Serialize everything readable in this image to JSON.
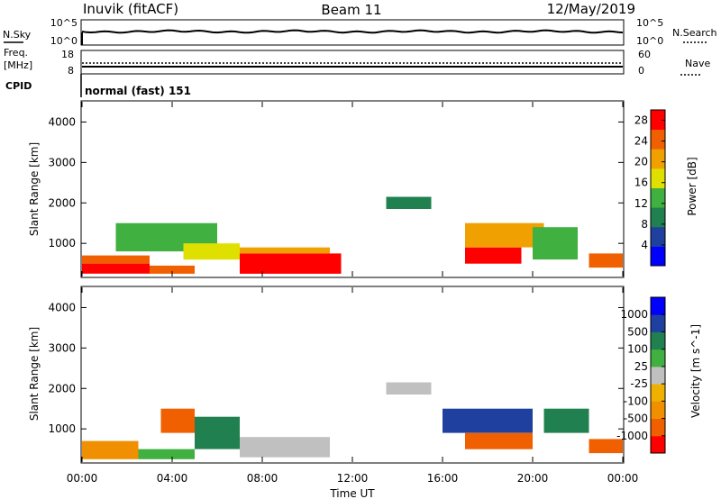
{
  "header": {
    "station": "Inuvik (fitACF)",
    "beam": "Beam 11",
    "date": "12/May/2019"
  },
  "sky_panel": {
    "left_label": "N.Sky",
    "left_ticks": [
      "10^5",
      "10^0"
    ],
    "right_label": "N.Search",
    "right_ticks": [
      "10^5",
      "10^0"
    ]
  },
  "freq_panel": {
    "left_label_1": "Freq.",
    "left_label_2": "[MHz]",
    "left_ticks": [
      "18",
      "8"
    ],
    "right_label": "Nave",
    "right_ticks": [
      "60",
      "0"
    ]
  },
  "cpid": {
    "label": "CPID",
    "value": "normal (fast) 151"
  },
  "colors": {
    "power_scale": [
      "#0000ff",
      "#2040a0",
      "#208050",
      "#40b040",
      "#e0e000",
      "#f0a000",
      "#f06000",
      "#ff0000"
    ],
    "velocity_scale": [
      "#ff0000",
      "#f06000",
      "#f09000",
      "#f0b000",
      "#c0c0c0",
      "#40b040",
      "#208050",
      "#2040a0",
      "#0000ff"
    ],
    "ground_scatter": "#c0c0c0"
  },
  "chart_data": [
    {
      "type": "heatmap",
      "panel": "power",
      "ylabel": "Slant Range [km]",
      "yticks": [
        "1000",
        "2000",
        "3000",
        "4000"
      ],
      "ylim": [
        180,
        4500
      ],
      "xticks": [
        "00:00",
        "04:00",
        "08:00",
        "12:00",
        "16:00",
        "20:00",
        "00:00"
      ],
      "colorbar_label": "Power [dB]",
      "colorbar_ticks": [
        "4",
        "8",
        "12",
        "16",
        "20",
        "24",
        "28"
      ],
      "colorbar_range": [
        0,
        30
      ],
      "regions": [
        {
          "t0": 0.0,
          "t1": 3.0,
          "r0": 250,
          "r1": 500,
          "value": 29
        },
        {
          "t0": 0.0,
          "t1": 3.0,
          "r0": 500,
          "r1": 700,
          "value": 23
        },
        {
          "t0": 3.0,
          "t1": 5.0,
          "r0": 250,
          "r1": 450,
          "value": 26
        },
        {
          "t0": 1.5,
          "t1": 6.0,
          "r0": 800,
          "r1": 1500,
          "value": 12
        },
        {
          "t0": 4.5,
          "t1": 7.0,
          "r0": 600,
          "r1": 1000,
          "value": 16
        },
        {
          "t0": 7.0,
          "t1": 11.5,
          "r0": 250,
          "r1": 750,
          "value": 28
        },
        {
          "t0": 7.0,
          "t1": 11.0,
          "r0": 750,
          "r1": 900,
          "value": 22
        },
        {
          "t0": 13.5,
          "t1": 15.5,
          "r0": 1850,
          "r1": 2150,
          "value": 8
        },
        {
          "t0": 17.0,
          "t1": 19.5,
          "r0": 500,
          "r1": 900,
          "value": 27
        },
        {
          "t0": 17.0,
          "t1": 20.5,
          "r0": 900,
          "r1": 1500,
          "value": 19
        },
        {
          "t0": 20.0,
          "t1": 22.0,
          "r0": 600,
          "r1": 1400,
          "value": 14
        },
        {
          "t0": 22.5,
          "t1": 24.0,
          "r0": 400,
          "r1": 750,
          "value": 24
        }
      ]
    },
    {
      "type": "heatmap",
      "panel": "velocity",
      "ylabel": "Slant Range [km]",
      "yticks": [
        "1000",
        "2000",
        "3000",
        "4000"
      ],
      "ylim": [
        180,
        4500
      ],
      "xticks": [
        "00:00",
        "04:00",
        "08:00",
        "12:00",
        "16:00",
        "20:00",
        "00:00"
      ],
      "xlabel": "Time UT",
      "colorbar_label": "Velocity [m s^-1]",
      "colorbar_ticks": [
        "1000",
        "500",
        "100",
        "25",
        "-25",
        "-100",
        "-500",
        "-1000"
      ],
      "colorbar_range": [
        -1000,
        1000
      ],
      "regions": [
        {
          "t0": 0.0,
          "t1": 2.5,
          "r0": 250,
          "r1": 700,
          "value": -80
        },
        {
          "t0": 2.5,
          "t1": 5.0,
          "r0": 250,
          "r1": 500,
          "value": 50
        },
        {
          "t0": 3.5,
          "t1": 5.0,
          "r0": 900,
          "r1": 1500,
          "value": -200
        },
        {
          "t0": 5.0,
          "t1": 7.0,
          "r0": 500,
          "r1": 1300,
          "value": 200
        },
        {
          "t0": 7.0,
          "t1": 11.0,
          "r0": 300,
          "r1": 800,
          "value": 10
        },
        {
          "t0": 13.5,
          "t1": 15.5,
          "r0": 1850,
          "r1": 2150,
          "value": 5
        },
        {
          "t0": 16.0,
          "t1": 20.0,
          "r0": 900,
          "r1": 1500,
          "value": 600
        },
        {
          "t0": 17.0,
          "t1": 20.0,
          "r0": 500,
          "r1": 900,
          "value": -300
        },
        {
          "t0": 20.5,
          "t1": 22.5,
          "r0": 900,
          "r1": 1500,
          "value": 120
        },
        {
          "t0": 22.5,
          "t1": 24.0,
          "r0": 400,
          "r1": 750,
          "value": -150
        }
      ]
    }
  ]
}
